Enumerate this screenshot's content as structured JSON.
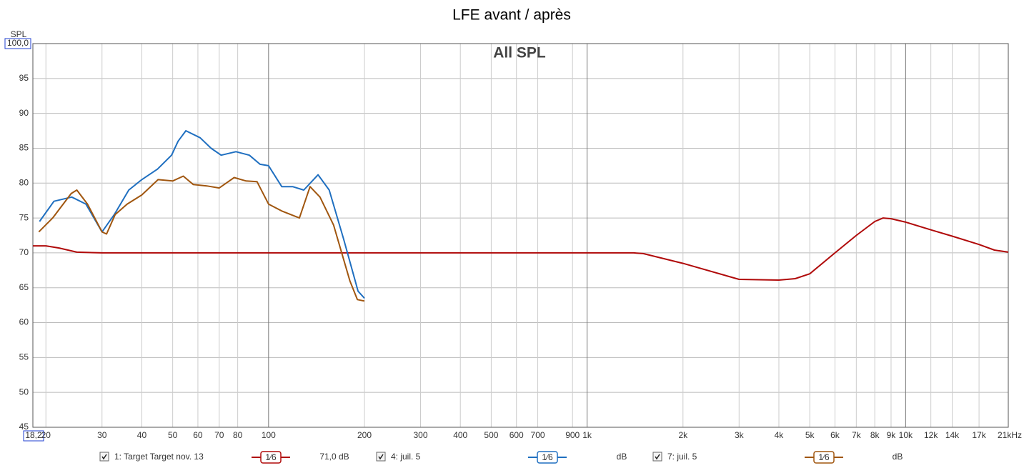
{
  "chart_data": {
    "type": "line",
    "title": "LFE avant / après",
    "annotation": "All SPL",
    "y_label": "SPL",
    "x_scale": "log",
    "grid": true,
    "xlim": [
      18.2,
      21000
    ],
    "ylim": [
      45,
      100
    ],
    "xticks": [
      {
        "value": 18.2,
        "label": "18,2"
      },
      20,
      30,
      40,
      50,
      60,
      70,
      80,
      100,
      200,
      300,
      400,
      500,
      600,
      700,
      900,
      {
        "value": 1000,
        "label": "1k"
      },
      {
        "value": 2000,
        "label": "2k"
      },
      {
        "value": 3000,
        "label": "3k"
      },
      {
        "value": 4000,
        "label": "4k"
      },
      {
        "value": 5000,
        "label": "5k"
      },
      {
        "value": 6000,
        "label": "6k"
      },
      {
        "value": 7000,
        "label": "7k"
      },
      {
        "value": 8000,
        "label": "8k"
      },
      {
        "value": 9000,
        "label": "9k"
      },
      {
        "value": 10000,
        "label": "10k"
      },
      {
        "value": 12000,
        "label": "12k"
      },
      {
        "value": 14000,
        "label": "14k"
      },
      {
        "value": 17000,
        "label": "17k"
      },
      {
        "value": 21000,
        "label": "21kHz"
      }
    ],
    "yticks": [
      45,
      50,
      55,
      60,
      65,
      70,
      75,
      80,
      85,
      90,
      95,
      {
        "value": 100,
        "label": "100,0"
      }
    ],
    "series": [
      {
        "name": "1: Target Target nov. 13",
        "color": "#b00a0a",
        "smoothing": "1⁄6",
        "level": "71,0 dB",
        "x": [
          18.2,
          20,
          22,
          25,
          30,
          100,
          1000,
          1400,
          1500,
          2000,
          3000,
          4000,
          4500,
          5000,
          6000,
          7000,
          8000,
          8500,
          9000,
          10000,
          12000,
          14000,
          17000,
          19000,
          21000
        ],
        "values": [
          71,
          71,
          70.7,
          70.1,
          70,
          70,
          70,
          70,
          69.9,
          68.5,
          66.2,
          66.1,
          66.3,
          67,
          70,
          72.5,
          74.5,
          75,
          74.9,
          74.4,
          73.3,
          72.4,
          71.2,
          70.4,
          70.1
        ]
      },
      {
        "name": "4: juil. 5",
        "color": "#1f6fc0",
        "smoothing": "1⁄6",
        "level": "dB",
        "x": [
          19.1,
          21.2,
          24.1,
          26.7,
          30,
          32.8,
          36.4,
          40,
          44.8,
          49.6,
          52,
          55,
          61,
          66,
          71,
          79,
          87,
          94,
          100,
          110,
          119,
          129,
          143,
          155,
          172,
          191,
          200
        ],
        "values": [
          74.5,
          77.4,
          78,
          77,
          73,
          75.5,
          79,
          80.5,
          82,
          84,
          86,
          87.5,
          86.5,
          85,
          84,
          84.5,
          84,
          82.7,
          82.5,
          79.5,
          79.5,
          79,
          81.2,
          79,
          72,
          64.5,
          63.5
        ]
      },
      {
        "name": "7: juil. 5",
        "color": "#a0560f",
        "smoothing": "1⁄6",
        "level": "dB",
        "x": [
          19,
          21,
          24,
          25,
          27,
          30,
          31,
          33,
          36,
          40,
          45,
          50,
          54,
          58,
          64,
          70,
          78,
          85,
          92,
          100,
          110,
          125,
          135,
          145,
          160,
          180,
          190,
          200
        ],
        "values": [
          73,
          75,
          78.5,
          79,
          77,
          73,
          72.7,
          75.5,
          77,
          78.3,
          80.5,
          80.3,
          81,
          79.8,
          79.6,
          79.3,
          80.8,
          80.3,
          80.2,
          77,
          76,
          75,
          79.5,
          78,
          74,
          66,
          63.3,
          63.1
        ]
      }
    ]
  }
}
